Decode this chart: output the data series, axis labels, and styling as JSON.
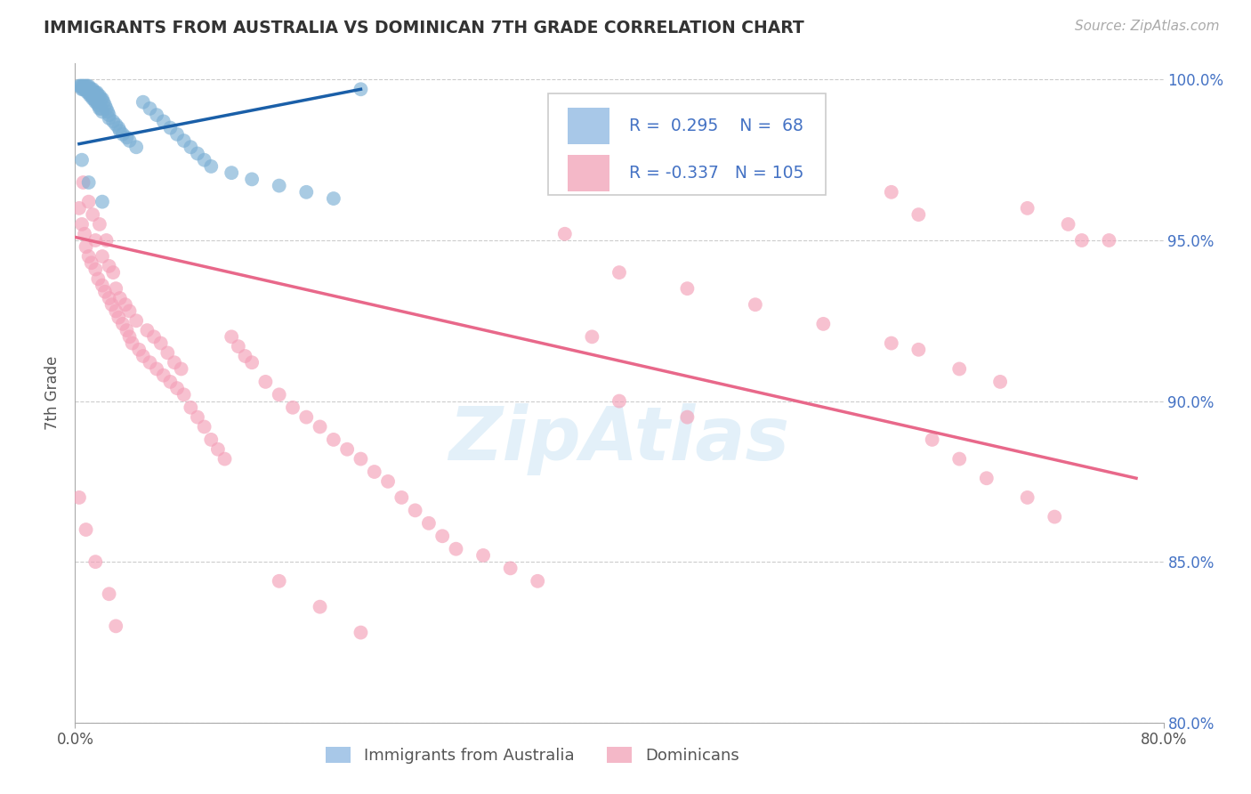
{
  "title": "IMMIGRANTS FROM AUSTRALIA VS DOMINICAN 7TH GRADE CORRELATION CHART",
  "source": "Source: ZipAtlas.com",
  "ylabel": "7th Grade",
  "xlim": [
    0.0,
    0.8
  ],
  "ylim": [
    0.8,
    1.005
  ],
  "yticks": [
    0.8,
    0.85,
    0.9,
    0.95,
    1.0
  ],
  "yticklabels": [
    "80.0%",
    "85.0%",
    "90.0%",
    "95.0%",
    "100.0%"
  ],
  "legend_entries": [
    "Immigrants from Australia",
    "Dominicans"
  ],
  "r_australia": 0.295,
  "n_australia": 68,
  "r_dominican": -0.337,
  "n_dominican": 105,
  "blue_color": "#7bafd4",
  "pink_color": "#f4a0b8",
  "trend_blue": "#1a5fa8",
  "trend_pink": "#e8688a",
  "legend_blue_patch": "#a8c8e8",
  "legend_pink_patch": "#f4b8c8",
  "watermark": "ZipAtlas",
  "background_color": "#ffffff",
  "grid_color": "#cccccc",
  "blue_x": [
    0.003,
    0.004,
    0.005,
    0.005,
    0.006,
    0.006,
    0.007,
    0.007,
    0.008,
    0.008,
    0.009,
    0.009,
    0.01,
    0.01,
    0.011,
    0.011,
    0.012,
    0.012,
    0.013,
    0.013,
    0.014,
    0.014,
    0.015,
    0.015,
    0.016,
    0.016,
    0.017,
    0.017,
    0.018,
    0.018,
    0.019,
    0.019,
    0.02,
    0.02,
    0.021,
    0.022,
    0.023,
    0.024,
    0.025,
    0.025,
    0.028,
    0.03,
    0.032,
    0.033,
    0.035,
    0.038,
    0.04,
    0.045,
    0.05,
    0.055,
    0.06,
    0.065,
    0.07,
    0.075,
    0.08,
    0.085,
    0.09,
    0.095,
    0.1,
    0.115,
    0.13,
    0.15,
    0.17,
    0.19,
    0.21,
    0.005,
    0.01,
    0.02
  ],
  "blue_y": [
    0.998,
    0.998,
    0.998,
    0.997,
    0.998,
    0.997,
    0.998,
    0.997,
    0.998,
    0.997,
    0.998,
    0.996,
    0.998,
    0.996,
    0.997,
    0.995,
    0.997,
    0.995,
    0.997,
    0.994,
    0.996,
    0.994,
    0.996,
    0.993,
    0.996,
    0.993,
    0.995,
    0.992,
    0.995,
    0.991,
    0.994,
    0.991,
    0.994,
    0.99,
    0.993,
    0.992,
    0.991,
    0.99,
    0.989,
    0.988,
    0.987,
    0.986,
    0.985,
    0.984,
    0.983,
    0.982,
    0.981,
    0.979,
    0.993,
    0.991,
    0.989,
    0.987,
    0.985,
    0.983,
    0.981,
    0.979,
    0.977,
    0.975,
    0.973,
    0.971,
    0.969,
    0.967,
    0.965,
    0.963,
    0.997,
    0.975,
    0.968,
    0.962
  ],
  "pink_x": [
    0.003,
    0.005,
    0.006,
    0.007,
    0.008,
    0.01,
    0.01,
    0.012,
    0.013,
    0.015,
    0.015,
    0.017,
    0.018,
    0.02,
    0.02,
    0.022,
    0.023,
    0.025,
    0.025,
    0.027,
    0.028,
    0.03,
    0.03,
    0.032,
    0.033,
    0.035,
    0.037,
    0.038,
    0.04,
    0.04,
    0.042,
    0.045,
    0.047,
    0.05,
    0.053,
    0.055,
    0.058,
    0.06,
    0.063,
    0.065,
    0.068,
    0.07,
    0.073,
    0.075,
    0.078,
    0.08,
    0.085,
    0.09,
    0.095,
    0.1,
    0.105,
    0.11,
    0.115,
    0.12,
    0.125,
    0.13,
    0.14,
    0.15,
    0.16,
    0.17,
    0.18,
    0.19,
    0.2,
    0.21,
    0.22,
    0.23,
    0.24,
    0.25,
    0.26,
    0.27,
    0.28,
    0.3,
    0.32,
    0.34,
    0.36,
    0.38,
    0.4,
    0.45,
    0.5,
    0.55,
    0.6,
    0.62,
    0.65,
    0.68,
    0.7,
    0.73,
    0.76,
    0.003,
    0.008,
    0.015,
    0.025,
    0.03,
    0.15,
    0.18,
    0.21,
    0.4,
    0.45,
    0.6,
    0.62,
    0.74,
    0.63,
    0.65,
    0.67,
    0.7,
    0.72
  ],
  "pink_y": [
    0.96,
    0.955,
    0.968,
    0.952,
    0.948,
    0.962,
    0.945,
    0.943,
    0.958,
    0.941,
    0.95,
    0.938,
    0.955,
    0.936,
    0.945,
    0.934,
    0.95,
    0.932,
    0.942,
    0.93,
    0.94,
    0.928,
    0.935,
    0.926,
    0.932,
    0.924,
    0.93,
    0.922,
    0.92,
    0.928,
    0.918,
    0.925,
    0.916,
    0.914,
    0.922,
    0.912,
    0.92,
    0.91,
    0.918,
    0.908,
    0.915,
    0.906,
    0.912,
    0.904,
    0.91,
    0.902,
    0.898,
    0.895,
    0.892,
    0.888,
    0.885,
    0.882,
    0.92,
    0.917,
    0.914,
    0.912,
    0.906,
    0.902,
    0.898,
    0.895,
    0.892,
    0.888,
    0.885,
    0.882,
    0.878,
    0.875,
    0.87,
    0.866,
    0.862,
    0.858,
    0.854,
    0.852,
    0.848,
    0.844,
    0.952,
    0.92,
    0.94,
    0.935,
    0.93,
    0.924,
    0.918,
    0.916,
    0.91,
    0.906,
    0.96,
    0.955,
    0.95,
    0.87,
    0.86,
    0.85,
    0.84,
    0.83,
    0.844,
    0.836,
    0.828,
    0.9,
    0.895,
    0.965,
    0.958,
    0.95,
    0.888,
    0.882,
    0.876,
    0.87,
    0.864
  ],
  "pink_trend_x0": 0.0,
  "pink_trend_y0": 0.951,
  "pink_trend_x1": 0.78,
  "pink_trend_y1": 0.876,
  "blue_trend_x0": 0.003,
  "blue_trend_y0": 0.98,
  "blue_trend_x1": 0.21,
  "blue_trend_y1": 0.997
}
